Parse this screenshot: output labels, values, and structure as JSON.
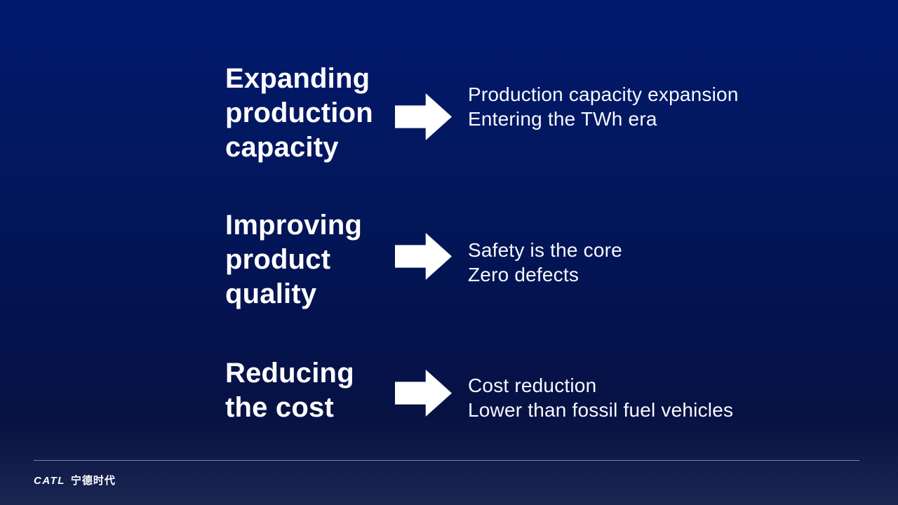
{
  "colors": {
    "background_top": "#011A6E",
    "background_bottom": "#1B2550",
    "heading_text": "#FFFFFF",
    "description_text": "#F7F9FD",
    "arrow_fill": "#FFFFFF",
    "divider_line": "rgba(205,210,225,0.55)"
  },
  "sections": [
    {
      "heading_lines": [
        "Expanding",
        "production",
        "capacity"
      ],
      "arrow_icon": "right-block-arrow",
      "desc_lines": [
        "Production capacity expansion",
        "Entering the TWh era"
      ]
    },
    {
      "heading_lines": [
        "Improving",
        "product",
        "quality"
      ],
      "arrow_icon": "right-block-arrow",
      "desc_lines": [
        "Safety is the core",
        "Zero defects"
      ]
    },
    {
      "heading_lines": [
        "Reducing",
        "the cost"
      ],
      "arrow_icon": "right-block-arrow",
      "desc_lines": [
        "Cost reduction",
        "Lower than fossil fuel vehicles"
      ]
    }
  ],
  "footer": {
    "logo_latin": "CATL",
    "logo_cjk": "宁德时代"
  }
}
